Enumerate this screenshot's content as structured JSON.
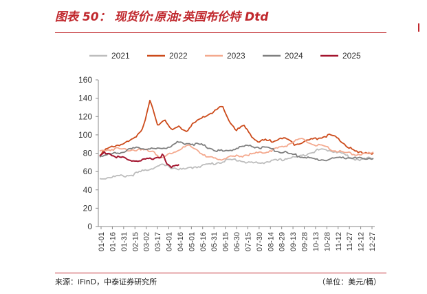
{
  "header": {
    "title": "图表 50： 现货价:原油:英国布伦特 Dtd"
  },
  "footer": {
    "source": "来源：iFinD，中泰证券研究所",
    "unit": "（单位：美元/桶）"
  },
  "chart_data": {
    "type": "line",
    "title": "",
    "xlabel": "",
    "ylabel": "",
    "ylim": [
      0,
      160
    ],
    "yticks": [
      0,
      20,
      40,
      60,
      80,
      100,
      120,
      140,
      160
    ],
    "grid": false,
    "legend_position": "top",
    "x_tick_labels": [
      "01-01",
      "01-16",
      "01-31",
      "02-15",
      "03-02",
      "03-17",
      "04-01",
      "04-16",
      "05-01",
      "05-16",
      "05-31",
      "06-15",
      "06-30",
      "07-15",
      "07-30",
      "08-14",
      "08-29",
      "09-13",
      "09-28",
      "10-13",
      "10-28",
      "11-12",
      "11-27",
      "12-12",
      "12-27"
    ],
    "series": [
      {
        "name": "2021",
        "color": "#bdbdbd",
        "values": [
          52,
          54,
          55,
          56,
          60,
          64,
          67,
          64,
          62,
          65,
          67,
          69,
          72,
          73,
          70,
          69,
          71,
          72,
          75,
          76,
          81,
          84,
          83,
          80,
          74,
          73,
          75
        ]
      },
      {
        "name": "2022",
        "color": "#cc4a1a",
        "values": [
          79,
          84,
          88,
          90,
          92,
          98,
          108,
          138,
          110,
          118,
          104,
          109,
          104,
          112,
          117,
          122,
          126,
          131,
          115,
          105,
          110,
          100,
          92,
          94,
          93,
          97,
          95,
          90,
          92,
          94,
          96,
          98,
          100,
          96,
          90,
          84,
          80,
          81,
          80
        ]
      },
      {
        "name": "2023",
        "color": "#f4a98e",
        "values": [
          82,
          84,
          85,
          84,
          84,
          83,
          83,
          74,
          80,
          84,
          88,
          84,
          76,
          74,
          74,
          76,
          77,
          79,
          80,
          82,
          85,
          88,
          93,
          95,
          90,
          88,
          85,
          82,
          80,
          79,
          79,
          80
        ]
      },
      {
        "name": "2024",
        "color": "#7f7f7f",
        "values": [
          77,
          78,
          80,
          82,
          84,
          86,
          85,
          84,
          86,
          87,
          92,
          91,
          90,
          89,
          86,
          83,
          82,
          84,
          87,
          88,
          87,
          86,
          84,
          82,
          80,
          78,
          76,
          74,
          73,
          73,
          74,
          76,
          75,
          74,
          74,
          75
        ]
      },
      {
        "name": "2025",
        "color": "#a3142e",
        "values": [
          77,
          80,
          81,
          78,
          76,
          75,
          75,
          73,
          72,
          72,
          71,
          72,
          73,
          74,
          75,
          76,
          78,
          67,
          64,
          67,
          68
        ]
      }
    ]
  }
}
